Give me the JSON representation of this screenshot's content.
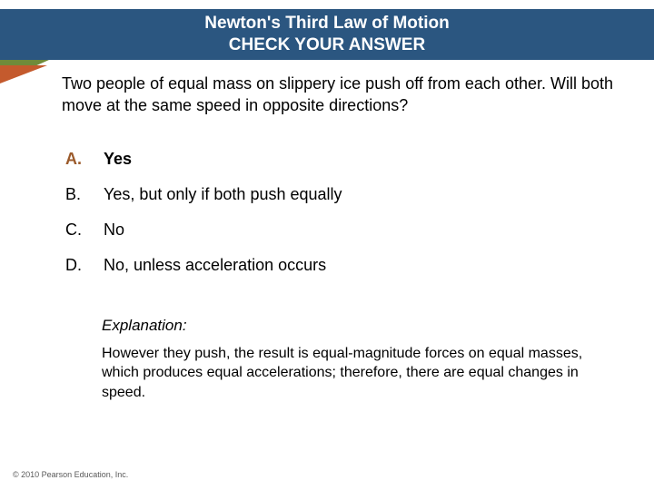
{
  "header": {
    "line1": "Newton's Third Law of Motion",
    "line2": "CHECK YOUR ANSWER",
    "band_color": "#2b5680",
    "text_color": "#ffffff"
  },
  "tab": {
    "upper_color": "#6f8b3a",
    "lower_color": "#c45a2d"
  },
  "question": "Two people of equal mass on slippery ice push off from each other. Will both move at the same speed in opposite directions?",
  "options": [
    {
      "label": "A.",
      "text": "Yes",
      "correct": true
    },
    {
      "label": "B.",
      "text": "Yes, but only if both push equally",
      "correct": false
    },
    {
      "label": "C.",
      "text": "No",
      "correct": false
    },
    {
      "label": "D.",
      "text": "No, unless acceleration occurs",
      "correct": false
    }
  ],
  "explanation": {
    "title": "Explanation:",
    "text": "However they push, the result is equal-magnitude forces on equal masses, which produces equal accelerations; therefore, there are equal changes in speed."
  },
  "footer": "© 2010 Pearson Education, Inc.",
  "styles": {
    "correct_label_color": "#9b5a2b",
    "question_fontsize": 18,
    "option_fontsize": 18,
    "explanation_fontsize": 16
  }
}
